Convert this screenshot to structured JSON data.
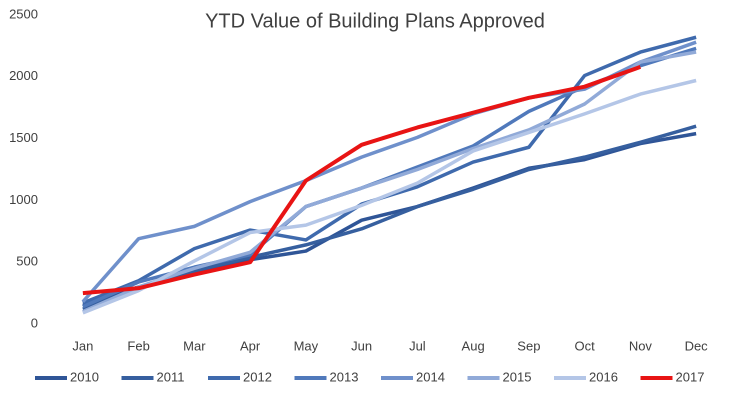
{
  "chart_data": {
    "type": "line",
    "title": "YTD Value of Building Plans Approved",
    "categories": [
      "Jan",
      "Feb",
      "Mar",
      "Apr",
      "May",
      "Jun",
      "Jul",
      "Aug",
      "Sep",
      "Oct",
      "Nov",
      "Dec"
    ],
    "ylim": [
      0,
      2500
    ],
    "yticks": [
      0,
      500,
      1000,
      1500,
      2000,
      2500
    ],
    "grid": false,
    "legend": "bottom",
    "series": [
      {
        "name": "2010",
        "color": "#2f5597",
        "values": [
          150,
          300,
          420,
          520,
          590,
          840,
          950,
          1100,
          1260,
          1330,
          1460,
          1540
        ]
      },
      {
        "name": "2011",
        "color": "#365f9f",
        "values": [
          120,
          290,
          430,
          540,
          640,
          770,
          950,
          1090,
          1250,
          1350,
          1470,
          1600
        ]
      },
      {
        "name": "2012",
        "color": "#3f6aad",
        "values": [
          170,
          350,
          610,
          760,
          680,
          970,
          1110,
          1310,
          1430,
          2010,
          2200,
          2320
        ]
      },
      {
        "name": "2013",
        "color": "#5079bb",
        "values": [
          140,
          340,
          460,
          560,
          950,
          1100,
          1270,
          1440,
          1720,
          1920,
          2090,
          2230
        ]
      },
      {
        "name": "2014",
        "color": "#6f90cb",
        "values": [
          180,
          690,
          790,
          990,
          1160,
          1350,
          1510,
          1700,
          1830,
          1900,
          2120,
          2280
        ]
      },
      {
        "name": "2015",
        "color": "#91aad8",
        "values": [
          100,
          300,
          450,
          580,
          950,
          1100,
          1250,
          1420,
          1570,
          1780,
          2120,
          2200
        ]
      },
      {
        "name": "2016",
        "color": "#b4c6e7",
        "values": [
          90,
          270,
          510,
          740,
          800,
          960,
          1140,
          1400,
          1550,
          1700,
          1860,
          1970
        ]
      },
      {
        "name": "2017",
        "color": "#e81414",
        "values": [
          250,
          290,
          400,
          500,
          1160,
          1450,
          1590,
          1710,
          1830,
          1920,
          2080,
          null
        ]
      }
    ]
  }
}
